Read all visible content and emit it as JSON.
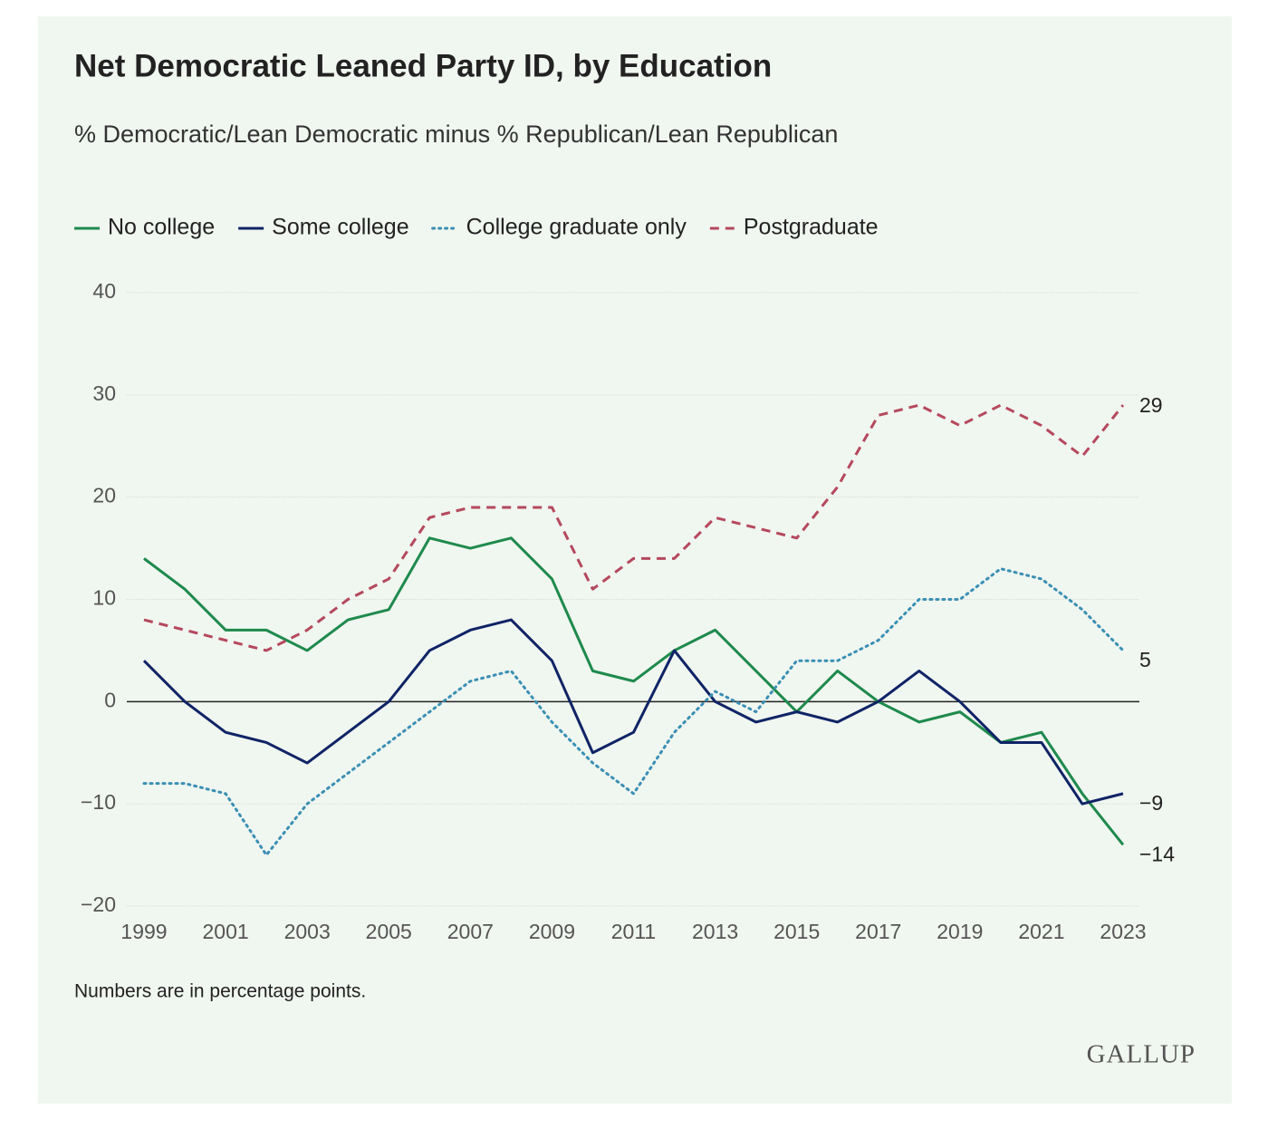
{
  "chart_data": {
    "type": "line",
    "title": "Net Democratic Leaned Party ID, by Education",
    "subtitle": "% Democratic/Lean Democratic minus % Republican/Lean Republican",
    "note": "Numbers are in percentage points.",
    "source": "GALLUP",
    "x": [
      1999,
      2000,
      2001,
      2002,
      2003,
      2004,
      2005,
      2006,
      2007,
      2008,
      2009,
      2010,
      2011,
      2012,
      2013,
      2014,
      2015,
      2016,
      2017,
      2018,
      2019,
      2020,
      2021,
      2022,
      2023
    ],
    "xlim": [
      1999,
      2023
    ],
    "xticks": [
      1999,
      2001,
      2003,
      2005,
      2007,
      2009,
      2011,
      2013,
      2015,
      2017,
      2019,
      2021,
      2023
    ],
    "ylim": [
      -20,
      40
    ],
    "yticks": [
      {
        "value": -20,
        "label": "−20"
      },
      {
        "value": -10,
        "label": "−10"
      },
      0,
      10,
      20,
      30,
      40
    ],
    "grid": true,
    "legend": "top",
    "series": [
      {
        "name": "No college",
        "color": "#1e8a4c",
        "dash": "solid",
        "values": [
          14,
          11,
          7,
          7,
          5,
          8,
          9,
          16,
          15,
          16,
          12,
          3,
          2,
          5,
          7,
          3,
          -1,
          3,
          0,
          -2,
          -1,
          -4,
          -3,
          -9,
          -14
        ],
        "value_labels": [
          null,
          null,
          null,
          null,
          null,
          null,
          null,
          null,
          null,
          null,
          null,
          null,
          null,
          null,
          null,
          null,
          null,
          null,
          null,
          null,
          null,
          null,
          null,
          null,
          "−14"
        ]
      },
      {
        "name": "Some college",
        "color": "#0f2466",
        "dash": "solid",
        "values": [
          4,
          0,
          -3,
          -4,
          -6,
          -3,
          0,
          5,
          7,
          8,
          4,
          -5,
          -3,
          5,
          0,
          -2,
          -1,
          -2,
          0,
          3,
          0,
          -4,
          -4,
          -10,
          -9
        ],
        "value_labels": [
          null,
          null,
          null,
          null,
          null,
          null,
          null,
          null,
          null,
          null,
          null,
          null,
          null,
          null,
          null,
          null,
          null,
          null,
          null,
          null,
          null,
          null,
          null,
          null,
          "−9"
        ]
      },
      {
        "name": "College graduate only",
        "color": "#3a8fb5",
        "dash": "dotted",
        "values": [
          -8,
          -8,
          -9,
          -15,
          -10,
          -7,
          -4,
          -1,
          2,
          3,
          -2,
          -6,
          -9,
          -3,
          1,
          -1,
          4,
          4,
          6,
          10,
          10,
          13,
          12,
          9,
          5
        ],
        "value_labels": [
          null,
          null,
          null,
          null,
          null,
          null,
          null,
          null,
          null,
          null,
          null,
          null,
          null,
          null,
          null,
          null,
          null,
          null,
          null,
          null,
          null,
          null,
          null,
          null,
          "5"
        ]
      },
      {
        "name": "Postgraduate",
        "color": "#b5485d",
        "dash": "dashed",
        "values": [
          8,
          7,
          6,
          5,
          7,
          10,
          12,
          18,
          19,
          19,
          19,
          11,
          14,
          14,
          18,
          17,
          16,
          21,
          28,
          29,
          27,
          29,
          27,
          24,
          29
        ],
        "value_labels": [
          null,
          null,
          null,
          null,
          null,
          null,
          null,
          null,
          null,
          null,
          null,
          null,
          null,
          null,
          null,
          null,
          null,
          null,
          null,
          null,
          null,
          null,
          null,
          null,
          "29"
        ]
      }
    ]
  }
}
